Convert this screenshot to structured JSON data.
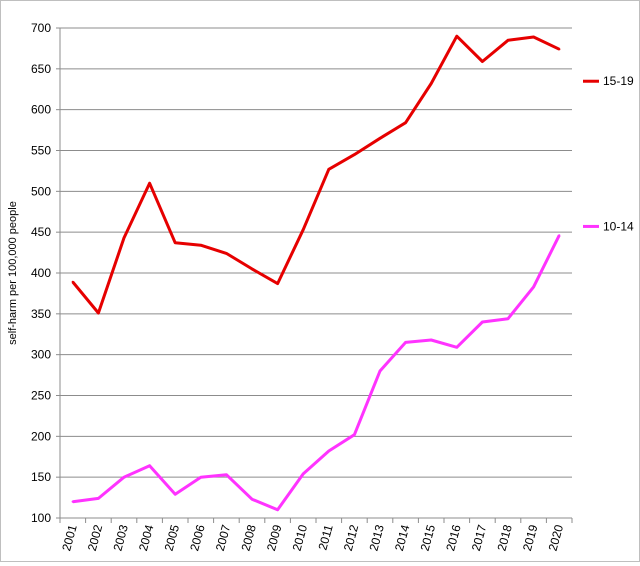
{
  "chart_data": {
    "type": "line",
    "title": "",
    "xlabel": "",
    "ylabel": "self-harm per 100,000 people",
    "categories": [
      "2001",
      "2002",
      "2003",
      "2004",
      "2005",
      "2006",
      "2007",
      "2008",
      "2009",
      "2010",
      "2011",
      "2012",
      "2013",
      "2014",
      "2015",
      "2016",
      "2017",
      "2018",
      "2019",
      "2020"
    ],
    "ylim": [
      100,
      700
    ],
    "yticks": [
      100,
      150,
      200,
      250,
      300,
      350,
      400,
      450,
      500,
      550,
      600,
      650,
      700
    ],
    "grid": true,
    "legend_placement": "right",
    "series": [
      {
        "name": "15-19",
        "color": "#e60000",
        "values": [
          389,
          351,
          443,
          510,
          437,
          434,
          424,
          405,
          387,
          453,
          527,
          545,
          565,
          584,
          632,
          690,
          659,
          685,
          689,
          674
        ]
      },
      {
        "name": "10-14",
        "color": "#ff33ff",
        "values": [
          120,
          124,
          150,
          164,
          129,
          150,
          153,
          123,
          110,
          154,
          182,
          202,
          280,
          315,
          318,
          309,
          340,
          344,
          383,
          446
        ]
      }
    ]
  }
}
